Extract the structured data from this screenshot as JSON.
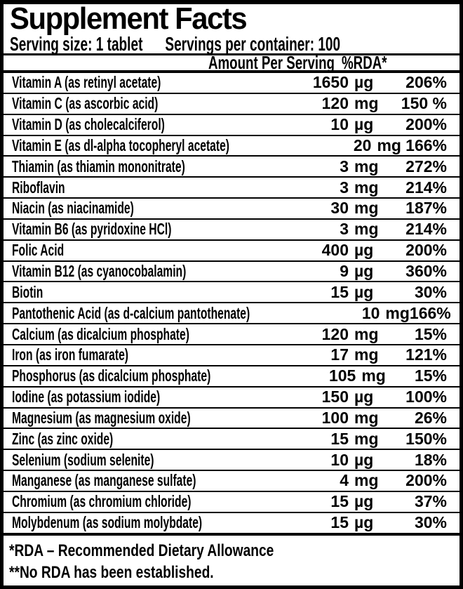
{
  "label_title": "Supplement Facts",
  "serving_info": {
    "serving_size": "Serving size: 1 tablet",
    "servings_per_container": "Servings per container: 100"
  },
  "table": {
    "header": {
      "amount_label": "Amount Per Serving",
      "rda_label": "%RDA*"
    },
    "rows": [
      {
        "name": "Vitamin A (as retinyl acetate)",
        "amount": "1650",
        "unit": "µg",
        "rda": "206%"
      },
      {
        "name": "Vitamin C (as ascorbic acid)",
        "amount": "120",
        "unit": "mg",
        "rda": "150 %"
      },
      {
        "name": "Vitamin D (as cholecalciferol)",
        "amount": "10",
        "unit": "µg",
        "rda": "200%"
      },
      {
        "name": "Vitamin E (as dl-alpha tocopheryl acetate)",
        "amount": "20",
        "unit": "mg",
        "rda": "166%"
      },
      {
        "name": "Thiamin (as thiamin mononitrate)",
        "amount": "3",
        "unit": "mg",
        "rda": "272%"
      },
      {
        "name": "Riboflavin",
        "amount": "3",
        "unit": "mg",
        "rda": "214%"
      },
      {
        "name": "Niacin (as niacinamide)",
        "amount": "30",
        "unit": "mg",
        "rda": "187%"
      },
      {
        "name": "Vitamin B6 (as pyridoxine HCl)",
        "amount": "3",
        "unit": "mg",
        "rda": "214%"
      },
      {
        "name": "Folic Acid",
        "amount": "400",
        "unit": "µg",
        "rda": "200%"
      },
      {
        "name": "Vitamin B12 (as cyanocobalamin)",
        "amount": "9",
        "unit": "µg",
        "rda": "360%"
      },
      {
        "name": "Biotin",
        "amount": "15",
        "unit": "µg",
        "rda": "30%"
      },
      {
        "name": "Pantothenic Acid (as d-calcium pantothenate)",
        "amount": "10",
        "unit": "mg",
        "rda": "166%"
      },
      {
        "name": "Calcium (as dicalcium phosphate)",
        "amount": "120",
        "unit": "mg",
        "rda": "15%"
      },
      {
        "name": "Iron (as iron fumarate)",
        "amount": "17",
        "unit": "mg",
        "rda": "121%"
      },
      {
        "name": "Phosphorus (as dicalcium phosphate)",
        "amount": "105",
        "unit": "mg",
        "rda": "15%"
      },
      {
        "name": "Iodine (as potassium iodide)",
        "amount": "150",
        "unit": "µg",
        "rda": "100%"
      },
      {
        "name": "Magnesium (as magnesium oxide)",
        "amount": "100",
        "unit": "mg",
        "rda": "26%"
      },
      {
        "name": "Zinc (as zinc oxide)",
        "amount": "15",
        "unit": "mg",
        "rda": "150%"
      },
      {
        "name": "Selenium (sodium selenite)",
        "amount": "10",
        "unit": "µg",
        "rda": "18%"
      },
      {
        "name": "Manganese (as manganese sulfate)",
        "amount": "4",
        "unit": "mg",
        "rda": "200%"
      },
      {
        "name": "Chromium (as chromium chloride)",
        "amount": "15",
        "unit": "µg",
        "rda": "37%"
      },
      {
        "name": "Molybdenum (as sodium molybdate)",
        "amount": "15",
        "unit": "µg",
        "rda": "30%"
      }
    ]
  },
  "footnotes": {
    "rda_definition": "*RDA – Recommended Dietary Allowance",
    "no_rda": "**No RDA has been established."
  },
  "colors": {
    "background": "#ffffff",
    "text": "#000000",
    "border": "#000000"
  }
}
